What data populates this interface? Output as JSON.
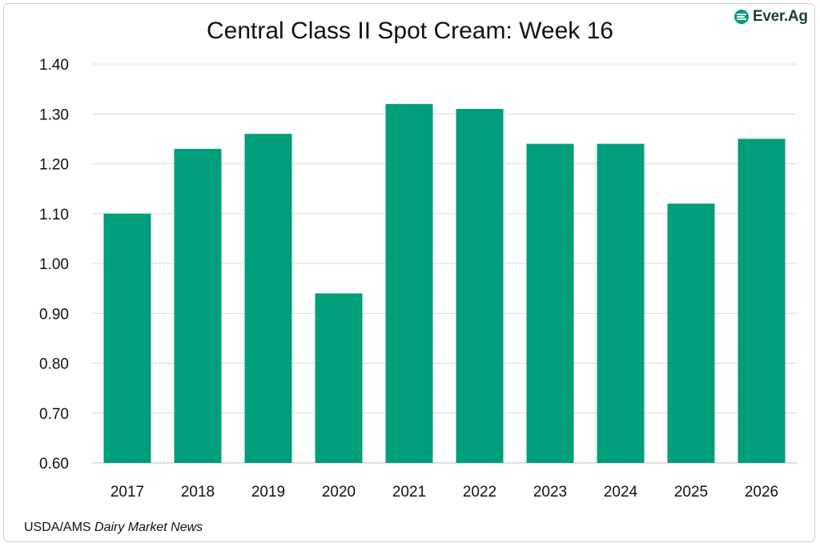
{
  "logo": {
    "text": "Ever.Ag",
    "color": "#009e7a"
  },
  "source": {
    "prefix": "USDA/AMS ",
    "publication": "Dairy Market News"
  },
  "chart_data": {
    "type": "bar",
    "title": "Central Class II Spot Cream: Week 16",
    "xlabel": "",
    "ylabel": "",
    "categories": [
      "2017",
      "2018",
      "2019",
      "2020",
      "2021",
      "2022",
      "2023",
      "2024",
      "2025",
      "2026"
    ],
    "values": [
      1.1,
      1.23,
      1.26,
      0.94,
      1.32,
      1.31,
      1.24,
      1.24,
      1.12,
      1.25
    ],
    "ylim": [
      0.6,
      1.4
    ],
    "yticks": [
      "0.60",
      "0.70",
      "0.80",
      "0.90",
      "1.00",
      "1.10",
      "1.20",
      "1.30",
      "1.40"
    ],
    "grid": true,
    "bar_color": "#009e7a",
    "legend": "none"
  }
}
